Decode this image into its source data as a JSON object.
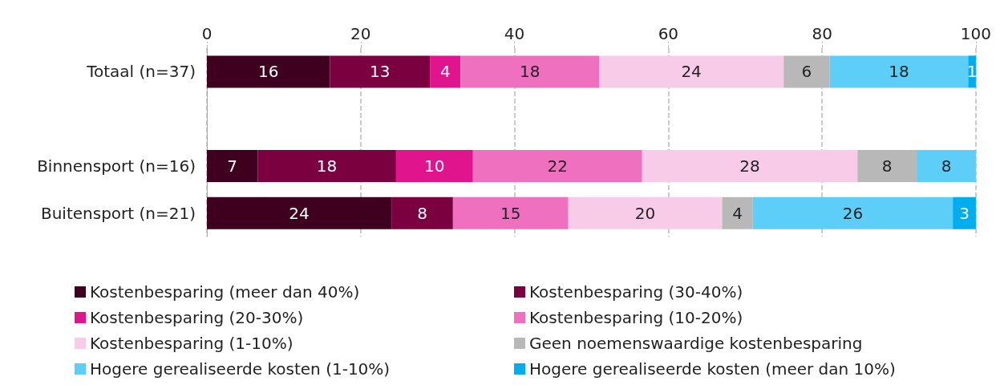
{
  "chart_data": {
    "type": "bar",
    "orientation": "horizontal",
    "stacked": true,
    "data_labels": true,
    "grid": "x",
    "legend": "bottom",
    "categories": [
      "Totaal (n=37)",
      null,
      "Binnensport (n=16)",
      "Buitensport (n=21)"
    ],
    "xlim": [
      0,
      100
    ],
    "xticks": [
      0,
      20,
      40,
      60,
      80,
      100
    ],
    "series": [
      {
        "name": "Kostenbesparing (meer dan 40%)",
        "color": "#3f0020",
        "values": [
          16,
          null,
          6.6,
          24
        ],
        "value_labels": [
          "16",
          null,
          "7",
          "24"
        ]
      },
      {
        "name": "Kostenbesparing (30-40%)",
        "color": "#7a0040",
        "values": [
          13,
          null,
          18,
          8
        ]
      },
      {
        "name": "Kostenbesparing (20-30%)",
        "color": "#e0148c",
        "values": [
          4,
          null,
          10,
          null
        ]
      },
      {
        "name": "Kostenbesparing (10-20%)",
        "color": "#f070c0",
        "values": [
          18,
          null,
          22,
          15
        ]
      },
      {
        "name": "Kostenbesparing (1-10%)",
        "color": "#f8cce8",
        "values": [
          24,
          null,
          28,
          20
        ]
      },
      {
        "name": "Geen noemenswaardige kostenbesparing",
        "color": "#b8b8b8",
        "values": [
          6,
          null,
          7.7,
          4
        ],
        "value_labels": [
          "6",
          null,
          "8",
          "4"
        ]
      },
      {
        "name": "Hogere gerealiseerde kosten (1-10%)",
        "color": "#5ccef8",
        "values": [
          18,
          null,
          7.7,
          26
        ],
        "value_labels": [
          "18",
          null,
          "8",
          "26"
        ]
      },
      {
        "name": "Hogere gerealiseerde kosten (meer dan 10%)",
        "color": "#00aeef",
        "values": [
          1,
          null,
          null,
          3
        ]
      }
    ]
  }
}
